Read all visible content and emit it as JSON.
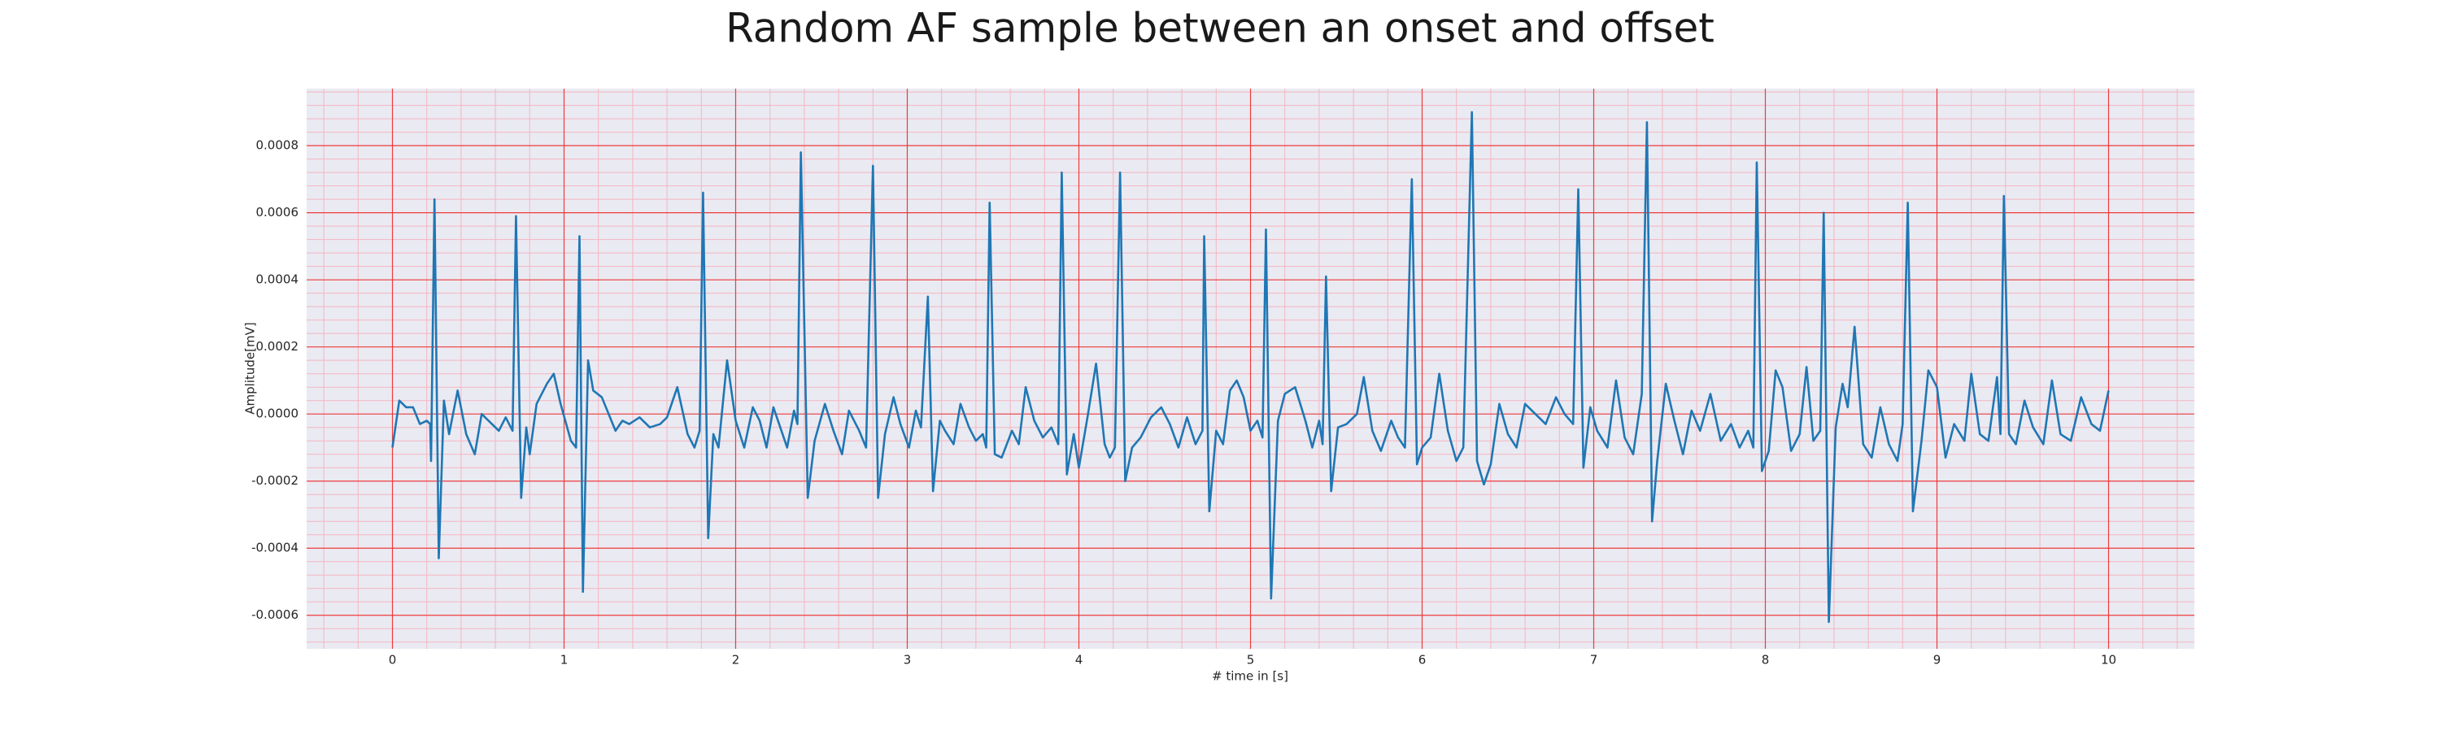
{
  "chart_data": {
    "type": "line",
    "title": "Random AF sample between an onset and offset",
    "xlabel": "# time in [s]",
    "ylabel": "Amplitude[mV]",
    "color": "#1f77b4",
    "grid": true,
    "minor_grid": true,
    "xlim": [
      -0.5,
      10.5
    ],
    "ylim": [
      -0.0007,
      0.00097
    ],
    "xticks": [
      0,
      1,
      2,
      3,
      4,
      5,
      6,
      7,
      8,
      9,
      10
    ],
    "yticks": [
      -0.0006,
      -0.0004,
      -0.0002,
      {
        "value": 0,
        "label": "0.0000"
      },
      0.0002,
      0.0004,
      0.0006,
      0.0008
    ],
    "x": [
      0.0,
      0.04,
      0.08,
      0.12,
      0.16,
      0.2,
      0.22,
      0.225,
      0.245,
      0.27,
      0.3,
      0.33,
      0.38,
      0.43,
      0.48,
      0.52,
      0.56,
      0.62,
      0.66,
      0.7,
      0.72,
      0.75,
      0.78,
      0.8,
      0.84,
      0.9,
      0.94,
      0.98,
      1.04,
      1.07,
      1.09,
      1.11,
      1.14,
      1.17,
      1.22,
      1.26,
      1.3,
      1.34,
      1.38,
      1.44,
      1.5,
      1.56,
      1.6,
      1.66,
      1.72,
      1.76,
      1.79,
      1.81,
      1.84,
      1.87,
      1.9,
      1.95,
      2.0,
      2.05,
      2.1,
      2.14,
      2.18,
      2.22,
      2.26,
      2.3,
      2.34,
      2.36,
      2.38,
      2.42,
      2.46,
      2.52,
      2.57,
      2.62,
      2.66,
      2.72,
      2.76,
      2.8,
      2.83,
      2.87,
      2.92,
      2.96,
      3.01,
      3.05,
      3.08,
      3.12,
      3.15,
      3.19,
      3.22,
      3.27,
      3.31,
      3.36,
      3.4,
      3.44,
      3.46,
      3.48,
      3.51,
      3.55,
      3.61,
      3.65,
      3.69,
      3.74,
      3.79,
      3.84,
      3.88,
      3.9,
      3.93,
      3.97,
      4.0,
      4.05,
      4.1,
      4.15,
      4.18,
      4.21,
      4.24,
      4.27,
      4.31,
      4.36,
      4.42,
      4.48,
      4.53,
      4.58,
      4.63,
      4.68,
      4.72,
      4.73,
      4.76,
      4.8,
      4.84,
      4.88,
      4.92,
      4.96,
      5.0,
      5.04,
      5.07,
      5.09,
      5.12,
      5.16,
      5.2,
      5.26,
      5.32,
      5.36,
      5.4,
      5.42,
      5.44,
      5.47,
      5.51,
      5.56,
      5.62,
      5.66,
      5.71,
      5.76,
      5.82,
      5.86,
      5.9,
      5.94,
      5.97,
      6.0,
      6.05,
      6.1,
      6.15,
      6.2,
      6.24,
      6.29,
      6.32,
      6.36,
      6.4,
      6.45,
      6.5,
      6.55,
      6.6,
      6.66,
      6.72,
      6.78,
      6.83,
      6.88,
      6.91,
      6.94,
      6.98,
      7.02,
      7.08,
      7.13,
      7.18,
      7.23,
      7.28,
      7.31,
      7.34,
      7.37,
      7.42,
      7.47,
      7.52,
      7.57,
      7.62,
      7.68,
      7.74,
      7.8,
      7.85,
      7.9,
      7.93,
      7.95,
      7.98,
      8.02,
      8.06,
      8.1,
      8.15,
      8.2,
      8.24,
      8.28,
      8.32,
      8.34,
      8.37,
      8.41,
      8.45,
      8.48,
      8.52,
      8.57,
      8.62,
      8.67,
      8.72,
      8.77,
      8.8,
      8.83,
      8.86,
      8.91,
      8.95,
      9.0,
      9.05,
      9.1,
      9.16,
      9.2,
      9.25,
      9.3,
      9.35,
      9.37,
      9.39,
      9.42,
      9.46,
      9.51,
      9.56,
      9.62,
      9.67,
      9.72,
      9.78,
      9.84,
      9.9,
      9.95,
      10.0
    ],
    "values": [
      -0.0001,
      4e-05,
      2e-05,
      2e-05,
      -3e-05,
      -2e-05,
      -3e-05,
      -0.00014,
      0.00064,
      -0.00043,
      4e-05,
      -6e-05,
      7e-05,
      -6e-05,
      -0.00012,
      0,
      -2e-05,
      -5e-05,
      -1e-05,
      -5e-05,
      0.00059,
      -0.00025,
      -4e-05,
      -0.00012,
      3e-05,
      9e-05,
      0.00012,
      3e-05,
      -8e-05,
      -0.0001,
      0.00053,
      -0.00053,
      0.00016,
      7e-05,
      5e-05,
      0,
      -5e-05,
      -2e-05,
      -3e-05,
      -1e-05,
      -4e-05,
      -3e-05,
      -1e-05,
      8e-05,
      -6e-05,
      -0.0001,
      -5e-05,
      0.00066,
      -0.00037,
      -6e-05,
      -0.0001,
      0.00016,
      -2e-05,
      -0.0001,
      2e-05,
      -2e-05,
      -0.0001,
      2e-05,
      -4e-05,
      -0.0001,
      1e-05,
      -3e-05,
      0.00078,
      -0.00025,
      -8e-05,
      3e-05,
      -5e-05,
      -0.00012,
      1e-05,
      -5e-05,
      -0.0001,
      0.00074,
      -0.00025,
      -6e-05,
      5e-05,
      -3e-05,
      -0.0001,
      1e-05,
      -4e-05,
      0.00035,
      -0.00023,
      -2e-05,
      -5e-05,
      -9e-05,
      3e-05,
      -4e-05,
      -8e-05,
      -6e-05,
      -0.0001,
      0.00063,
      -0.00012,
      -0.00013,
      -5e-05,
      -9e-05,
      8e-05,
      -2e-05,
      -7e-05,
      -4e-05,
      -9e-05,
      0.00072,
      -0.00018,
      -6e-05,
      -0.00016,
      -1e-05,
      0.00015,
      -9e-05,
      -0.00013,
      -0.0001,
      0.00072,
      -0.0002,
      -0.0001,
      -7e-05,
      -1e-05,
      2e-05,
      -3e-05,
      -0.0001,
      -1e-05,
      -9e-05,
      -5e-05,
      0.00053,
      -0.00029,
      -5e-05,
      -9e-05,
      7e-05,
      0.0001,
      5e-05,
      -5e-05,
      -2e-05,
      -7e-05,
      0.00055,
      -0.00055,
      -2e-05,
      6e-05,
      8e-05,
      -2e-05,
      -0.0001,
      -2e-05,
      -9e-05,
      0.00041,
      -0.00023,
      -4e-05,
      -3e-05,
      0,
      0.00011,
      -5e-05,
      -0.00011,
      -2e-05,
      -7e-05,
      -0.0001,
      0.0007,
      -0.00015,
      -0.0001,
      -7e-05,
      0.00012,
      -5e-05,
      -0.00014,
      -0.0001,
      0.0009,
      -0.00014,
      -0.00021,
      -0.00015,
      3e-05,
      -6e-05,
      -0.0001,
      3e-05,
      0,
      -3e-05,
      5e-05,
      0,
      -3e-05,
      0.00067,
      -0.00016,
      2e-05,
      -5e-05,
      -0.0001,
      0.0001,
      -7e-05,
      -0.00012,
      6e-05,
      0.00087,
      -0.00032,
      -0.00014,
      9e-05,
      -2e-05,
      -0.00012,
      1e-05,
      -5e-05,
      6e-05,
      -8e-05,
      -3e-05,
      -0.0001,
      -5e-05,
      -0.0001,
      0.00075,
      -0.00017,
      -0.00011,
      0.00013,
      8e-05,
      -0.00011,
      -6e-05,
      0.00014,
      -8e-05,
      -5e-05,
      0.0006,
      -0.00062,
      -4e-05,
      9e-05,
      2e-05,
      0.00026,
      -9e-05,
      -0.00013,
      2e-05,
      -9e-05,
      -0.00014,
      -3e-05,
      0.00063,
      -0.00029,
      -8e-05,
      0.00013,
      8e-05,
      -0.00013,
      -3e-05,
      -8e-05,
      0.00012,
      -6e-05,
      -8e-05,
      0.00011,
      -6e-05,
      0.00065,
      -6e-05,
      -9e-05,
      4e-05,
      -4e-05,
      -9e-05,
      0.0001,
      -6e-05,
      -8e-05,
      5e-05,
      -3e-05,
      -5e-05,
      7e-05
    ]
  }
}
